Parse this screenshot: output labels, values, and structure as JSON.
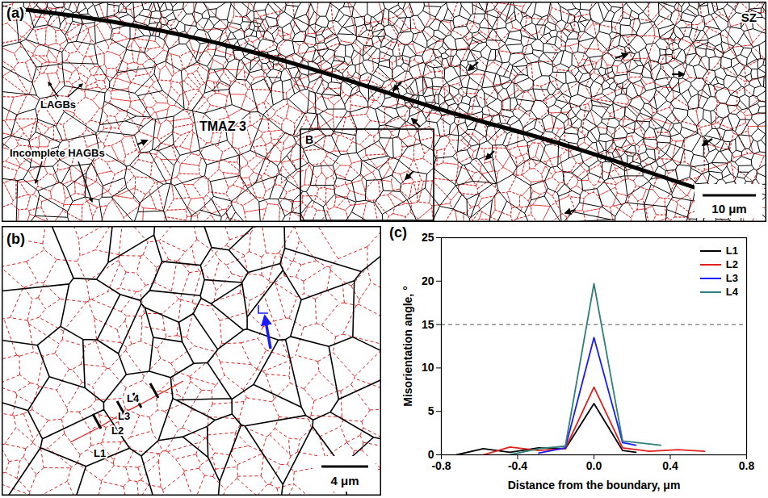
{
  "panels": {
    "a": {
      "label": "(a)",
      "zone_sz": "SZ",
      "zone_tmaz": "TMAZ 3",
      "lagbs": "LAGBs",
      "incomplete_hagbs": "Incomplete HAGBs",
      "inset": "B",
      "scale_bar": "10 μm"
    },
    "b": {
      "label": "(b)",
      "scale_bar": "4 μm",
      "line_labels": [
        "L1",
        "L2",
        "L3",
        "L4"
      ]
    }
  },
  "chart_data": {
    "panel_label": "(c)",
    "type": "line",
    "xlabel": "Distance from the boundary, μm",
    "ylabel": "Misorientation angle, °",
    "xlim": [
      -0.8,
      0.8
    ],
    "xticks": [
      -0.8,
      -0.4,
      {
        "value": 0,
        "label": "0.0"
      },
      0.4,
      0.8
    ],
    "ylim": [
      0,
      25
    ],
    "yticks": [
      0,
      5,
      10,
      15,
      20,
      25
    ],
    "threshold": 15,
    "legend": "upper right",
    "series": [
      {
        "name": "L1",
        "color": "#000000",
        "x": [
          -0.72,
          -0.58,
          -0.44,
          -0.29,
          -0.15,
          0,
          0.15,
          0.22
        ],
        "values": [
          0,
          0.7,
          0.3,
          0.8,
          0.7,
          5.9,
          0.5,
          0.3
        ]
      },
      {
        "name": "L2",
        "color": "#e0201c",
        "x": [
          -0.58,
          -0.44,
          -0.29,
          -0.15,
          0,
          0.15,
          0.29,
          0.44,
          0.58
        ],
        "values": [
          0,
          0.9,
          0.5,
          0.7,
          7.8,
          0.8,
          0.4,
          0.6,
          0.4
        ]
      },
      {
        "name": "L3",
        "color": "#1a1aff",
        "x": [
          -0.29,
          -0.15,
          0,
          0.15,
          0.22
        ],
        "values": [
          0.2,
          0.8,
          13.5,
          1.4,
          1.1
        ]
      },
      {
        "name": "L4",
        "color": "#2e7f7a",
        "x": [
          -0.44,
          -0.29,
          -0.15,
          0,
          0.15,
          0.35
        ],
        "values": [
          0,
          0.7,
          1.0,
          19.7,
          1.6,
          1.1
        ]
      }
    ]
  }
}
